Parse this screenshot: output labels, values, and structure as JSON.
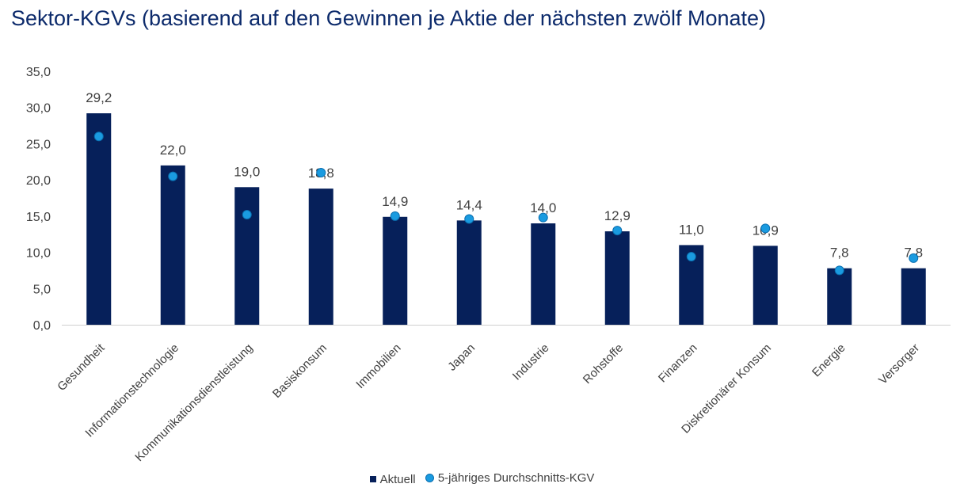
{
  "chart_data": {
    "type": "bar",
    "title": "Sektor-KGVs (basierend auf den Gewinnen je Aktie der nächsten zwölf Monate)",
    "categories": [
      "Gesundheit",
      "Informationstechnologie",
      "Kommunikationsdienstleistung",
      "Basiskonsum",
      "Immobilien",
      "Japan",
      "Industrie",
      "Rohstoffe",
      "Finanzen",
      "Diskretionärer Konsum",
      "Energie",
      "Versorger"
    ],
    "series": [
      {
        "name": "Aktuell",
        "type": "bar",
        "color": "#06205a",
        "values": [
          29.2,
          22.0,
          19.0,
          18.8,
          14.9,
          14.4,
          14.0,
          12.9,
          11.0,
          10.9,
          7.8,
          7.8
        ],
        "labels": [
          "29,2",
          "22,0",
          "19,0",
          "18,8",
          "14,9",
          "14,4",
          "14,0",
          "12,9",
          "11,0",
          "10,9",
          "7,8",
          "7,8"
        ]
      },
      {
        "name": "5-jähriges Durchschnitts-KGV",
        "type": "scatter",
        "color": "#1a9be0",
        "values": [
          26.0,
          20.5,
          15.2,
          21.0,
          15.0,
          14.6,
          14.8,
          13.0,
          9.4,
          13.3,
          7.5,
          9.2
        ]
      }
    ],
    "ylim": [
      0,
      35
    ],
    "yticks": [
      "0,0",
      "5,0",
      "10,0",
      "15,0",
      "20,0",
      "25,0",
      "30,0",
      "35,0"
    ],
    "legend_position": "bottom"
  }
}
